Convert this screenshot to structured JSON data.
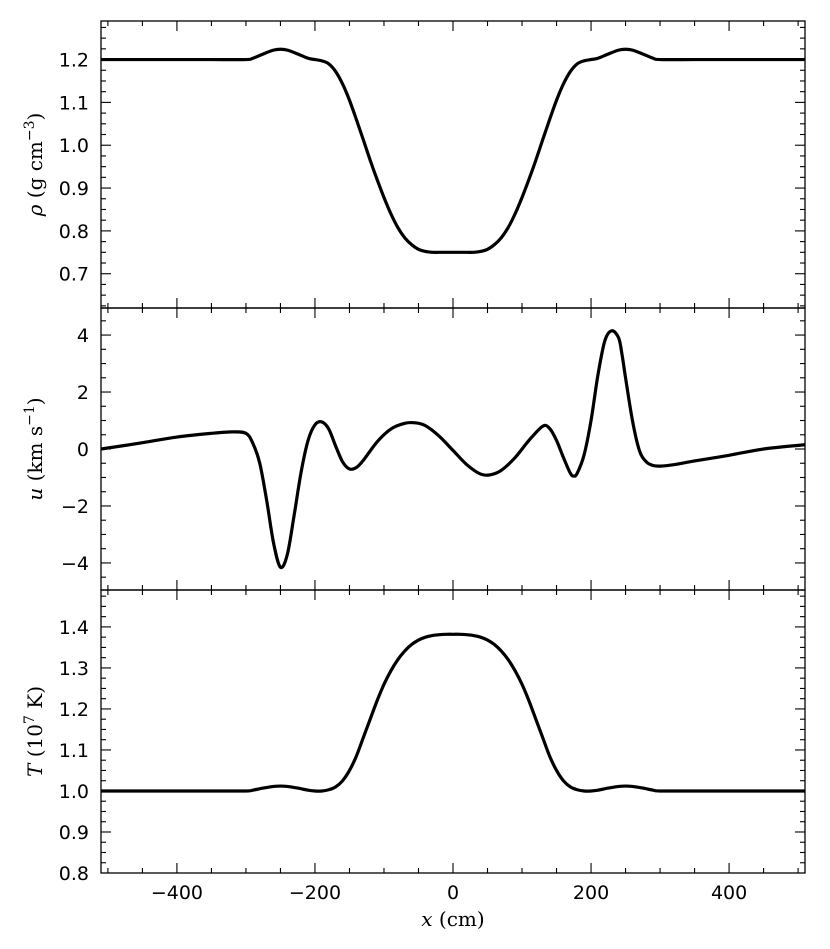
{
  "chart_data": [
    {
      "type": "line",
      "panel": "top",
      "ylabel": "ρ (g cm⁻³)",
      "ylabel_parts": {
        "symbol": "ρ",
        "units": "(g cm",
        "sup": "−3",
        "close": ")"
      },
      "xlim": [
        -510,
        510
      ],
      "ylim": [
        0.62,
        1.29
      ],
      "yticks": [
        0.7,
        0.8,
        0.9,
        1.0,
        1.1,
        1.2
      ],
      "ytick_labels": [
        "0.7",
        "0.8",
        "0.9",
        "1.0",
        "1.1",
        "1.2"
      ],
      "series": [
        {
          "style": "solid",
          "x": [
            -510,
            -450,
            -400,
            -350,
            -300,
            -290,
            -275,
            -260,
            -250,
            -240,
            -225,
            -210,
            -200,
            -190,
            -180,
            -170,
            -160,
            -150,
            -140,
            -130,
            -120,
            -110,
            -100,
            -90,
            -80,
            -70,
            -60,
            -50,
            -40,
            -30,
            -20,
            -10,
            0,
            10,
            20,
            30,
            40,
            50,
            60,
            70,
            80,
            90,
            100,
            110,
            120,
            130,
            140,
            150,
            160,
            170,
            180,
            190,
            200,
            210,
            225,
            240,
            250,
            260,
            275,
            290,
            300,
            350,
            400,
            450,
            510
          ],
          "y": [
            1.2,
            1.2,
            1.2,
            1.2,
            1.2,
            1.203,
            1.213,
            1.222,
            1.224,
            1.222,
            1.213,
            1.203,
            1.2,
            1.197,
            1.19,
            1.172,
            1.143,
            1.105,
            1.06,
            1.013,
            0.965,
            0.92,
            0.878,
            0.84,
            0.808,
            0.784,
            0.768,
            0.757,
            0.752,
            0.75,
            0.75,
            0.75,
            0.75,
            0.75,
            0.75,
            0.75,
            0.752,
            0.757,
            0.768,
            0.784,
            0.808,
            0.84,
            0.878,
            0.92,
            0.965,
            1.013,
            1.06,
            1.105,
            1.143,
            1.172,
            1.19,
            1.197,
            1.2,
            1.203,
            1.213,
            1.222,
            1.224,
            1.222,
            1.213,
            1.203,
            1.2,
            1.2,
            1.2,
            1.2,
            1.2
          ]
        }
      ]
    },
    {
      "type": "line",
      "panel": "middle",
      "ylabel": "u (km s⁻¹)",
      "ylabel_parts": {
        "symbol": "u",
        "units": "(km s",
        "sup": "−1",
        "close": ")"
      },
      "xlim": [
        -510,
        510
      ],
      "ylim": [
        -4.95,
        4.95
      ],
      "yticks": [
        -4,
        -2,
        0,
        2,
        4
      ],
      "ytick_labels": [
        "−4",
        "−2",
        "0",
        "2",
        "4"
      ],
      "series": [
        {
          "style": "solid",
          "x": [
            -510,
            -450,
            -400,
            -350,
            -320,
            -300,
            -290,
            -280,
            -270,
            -260,
            -250,
            -240,
            -230,
            -220,
            -210,
            -200,
            -190,
            -180,
            -170,
            -160,
            -150,
            -140,
            -130,
            -110,
            -90,
            -70,
            -55,
            -40,
            -20,
            0,
            20,
            40,
            55,
            70,
            90,
            110,
            130,
            140,
            150,
            160,
            170,
            175,
            180,
            190,
            200,
            210,
            220,
            230,
            240,
            245,
            250,
            260,
            270,
            280,
            290,
            300,
            320,
            350,
            400,
            450,
            510
          ],
          "y": [
            0,
            0.22,
            0.42,
            0.55,
            0.6,
            0.55,
            0.2,
            -0.5,
            -1.8,
            -3.3,
            -4.15,
            -3.7,
            -2.3,
            -0.8,
            0.3,
            0.85,
            0.95,
            0.7,
            0.1,
            -0.45,
            -0.7,
            -0.65,
            -0.4,
            0.25,
            0.7,
            0.9,
            0.92,
            0.82,
            0.45,
            -0.05,
            -0.55,
            -0.88,
            -0.9,
            -0.75,
            -0.3,
            0.3,
            0.8,
            0.72,
            0.3,
            -0.3,
            -0.85,
            -0.95,
            -0.85,
            -0.2,
            1.0,
            2.6,
            3.8,
            4.15,
            3.9,
            3.3,
            2.5,
            1.0,
            -0.05,
            -0.45,
            -0.58,
            -0.6,
            -0.55,
            -0.42,
            -0.22,
            0,
            0.15
          ]
        }
      ]
    },
    {
      "type": "line",
      "panel": "bottom",
      "ylabel": "T (10⁷ K)",
      "ylabel_parts": {
        "symbol": "T",
        "units": "(10",
        "sup": "7",
        "close": " K)"
      },
      "xlabel": "x (cm)",
      "xlabel_parts": {
        "symbol": "x",
        "units": "(cm)"
      },
      "xlim": [
        -510,
        510
      ],
      "ylim": [
        0.8,
        1.49
      ],
      "xticks": [
        -400,
        -200,
        0,
        200,
        400
      ],
      "xtick_labels": [
        "−400",
        "−200",
        "0",
        "200",
        "400"
      ],
      "yticks": [
        0.8,
        0.9,
        1.0,
        1.1,
        1.2,
        1.3,
        1.4
      ],
      "ytick_labels": [
        "0.8",
        "0.9",
        "1.0",
        "1.1",
        "1.2",
        "1.3",
        "1.4"
      ],
      "series": [
        {
          "style": "solid",
          "x": [
            -510,
            -450,
            -400,
            -350,
            -300,
            -290,
            -275,
            -260,
            -250,
            -240,
            -225,
            -210,
            -200,
            -190,
            -180,
            -170,
            -160,
            -150,
            -140,
            -130,
            -120,
            -110,
            -100,
            -90,
            -80,
            -70,
            -60,
            -50,
            -40,
            -30,
            -20,
            -10,
            0,
            10,
            20,
            30,
            40,
            50,
            60,
            70,
            80,
            90,
            100,
            110,
            120,
            130,
            140,
            150,
            160,
            170,
            180,
            190,
            200,
            210,
            225,
            240,
            250,
            260,
            275,
            290,
            300,
            350,
            400,
            450,
            510
          ],
          "y": [
            1.0,
            1.0,
            1.0,
            1.0,
            1.0,
            1.002,
            1.007,
            1.011,
            1.012,
            1.011,
            1.007,
            1.002,
            1.0,
            1.0,
            1.003,
            1.01,
            1.025,
            1.05,
            1.085,
            1.13,
            1.175,
            1.22,
            1.26,
            1.293,
            1.32,
            1.341,
            1.357,
            1.368,
            1.375,
            1.379,
            1.381,
            1.382,
            1.382,
            1.382,
            1.381,
            1.379,
            1.375,
            1.368,
            1.357,
            1.341,
            1.32,
            1.293,
            1.26,
            1.22,
            1.175,
            1.13,
            1.085,
            1.05,
            1.025,
            1.01,
            1.003,
            1.0,
            1.0,
            1.002,
            1.007,
            1.011,
            1.012,
            1.011,
            1.007,
            1.002,
            1.0,
            1.0,
            1.0,
            1.0,
            1.0
          ]
        }
      ]
    }
  ]
}
